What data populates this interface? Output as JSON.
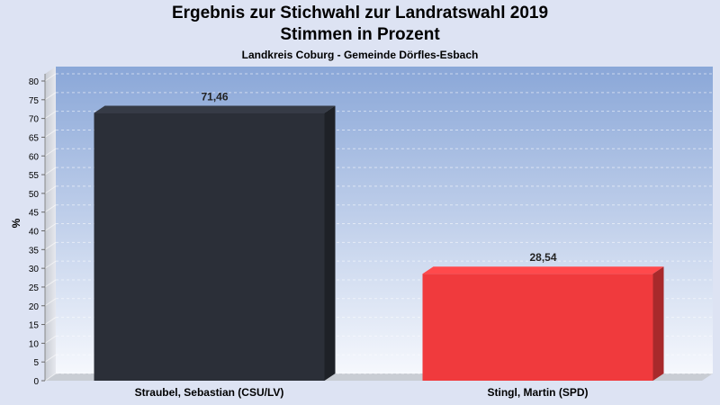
{
  "chart_data": {
    "type": "bar",
    "title": "Ergebnis zur Stichwahl zur Landratswahl 2019",
    "title_line2": "Stimmen in Prozent",
    "subtitle": "Landkreis Coburg - Gemeinde Dörfles-Esbach",
    "ylabel": "%",
    "xlabel": "",
    "ylim": [
      0,
      80
    ],
    "yticks": [
      0,
      5,
      10,
      15,
      20,
      25,
      30,
      35,
      40,
      45,
      50,
      55,
      60,
      65,
      70,
      75,
      80
    ],
    "categories": [
      "Straubel, Sebastian (CSU/LV)",
      "Stingl, Martin (SPD)"
    ],
    "values": [
      71.46,
      28.54
    ],
    "value_labels": [
      "71,46",
      "28,54"
    ],
    "colors": [
      "#2b2f38",
      "#f03a3d"
    ],
    "grid": true,
    "legend": "none"
  }
}
